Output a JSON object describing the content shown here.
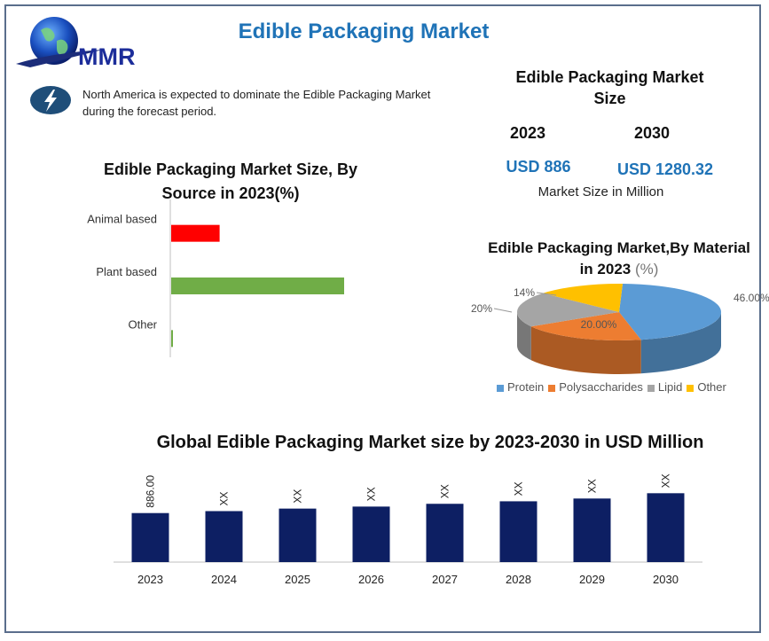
{
  "header": {
    "logo_text": "MMR",
    "title": "Edible Packaging Market"
  },
  "highlight": {
    "icon": "lightning-bolt-icon",
    "text": "North America is expected to dominate the Edible Packaging Market during the forecast period."
  },
  "market_size": {
    "title": "Edible Packaging Market Size",
    "year_start": "2023",
    "year_end": "2030",
    "value_start": "USD 886",
    "value_end": "USD 1280.32",
    "caption": "Market Size in Million"
  },
  "colors": {
    "accent": "#1f73b7",
    "navy_bar": "#0d1f63",
    "red_bar": "#ff0000",
    "green_bar": "#70ad47"
  },
  "chart_data": [
    {
      "type": "bar",
      "orientation": "horizontal",
      "title": "Edible Packaging Market Size, By Source in 2023(%)",
      "categories": [
        "Animal based",
        "Plant based",
        "Other"
      ],
      "values": [
        14,
        50,
        0.5
      ],
      "colors": [
        "#ff0000",
        "#70ad47",
        "#70ad47"
      ],
      "xlim": [
        0,
        100
      ],
      "grid": false
    },
    {
      "type": "pie",
      "title": "Edible Packaging Market,By Material in 2023",
      "title_suffix": "(%)",
      "labels": [
        "Protein",
        "Polysaccharides",
        "Lipid",
        "Other"
      ],
      "values": [
        46,
        20,
        20,
        14
      ],
      "data_labels": [
        "46.00%",
        "20.00%",
        "20%",
        "14%"
      ],
      "colors": [
        "#5b9bd5",
        "#ed7d31",
        "#a5a5a5",
        "#ffc000"
      ],
      "legend": "bottom"
    },
    {
      "type": "bar",
      "title": "Global Edible Packaging Market size by 2023-2030 in USD Million",
      "categories": [
        "2023",
        "2024",
        "2025",
        "2026",
        "2027",
        "2028",
        "2029",
        "2030"
      ],
      "values": [
        886,
        925,
        975,
        1015,
        1070,
        1120,
        1175,
        1280.32
      ],
      "data_labels": [
        "886.00",
        "XX",
        "XX",
        "XX",
        "XX",
        "XX",
        "XX",
        "XX"
      ],
      "ylim": [
        0,
        1300
      ],
      "grid": false
    }
  ]
}
